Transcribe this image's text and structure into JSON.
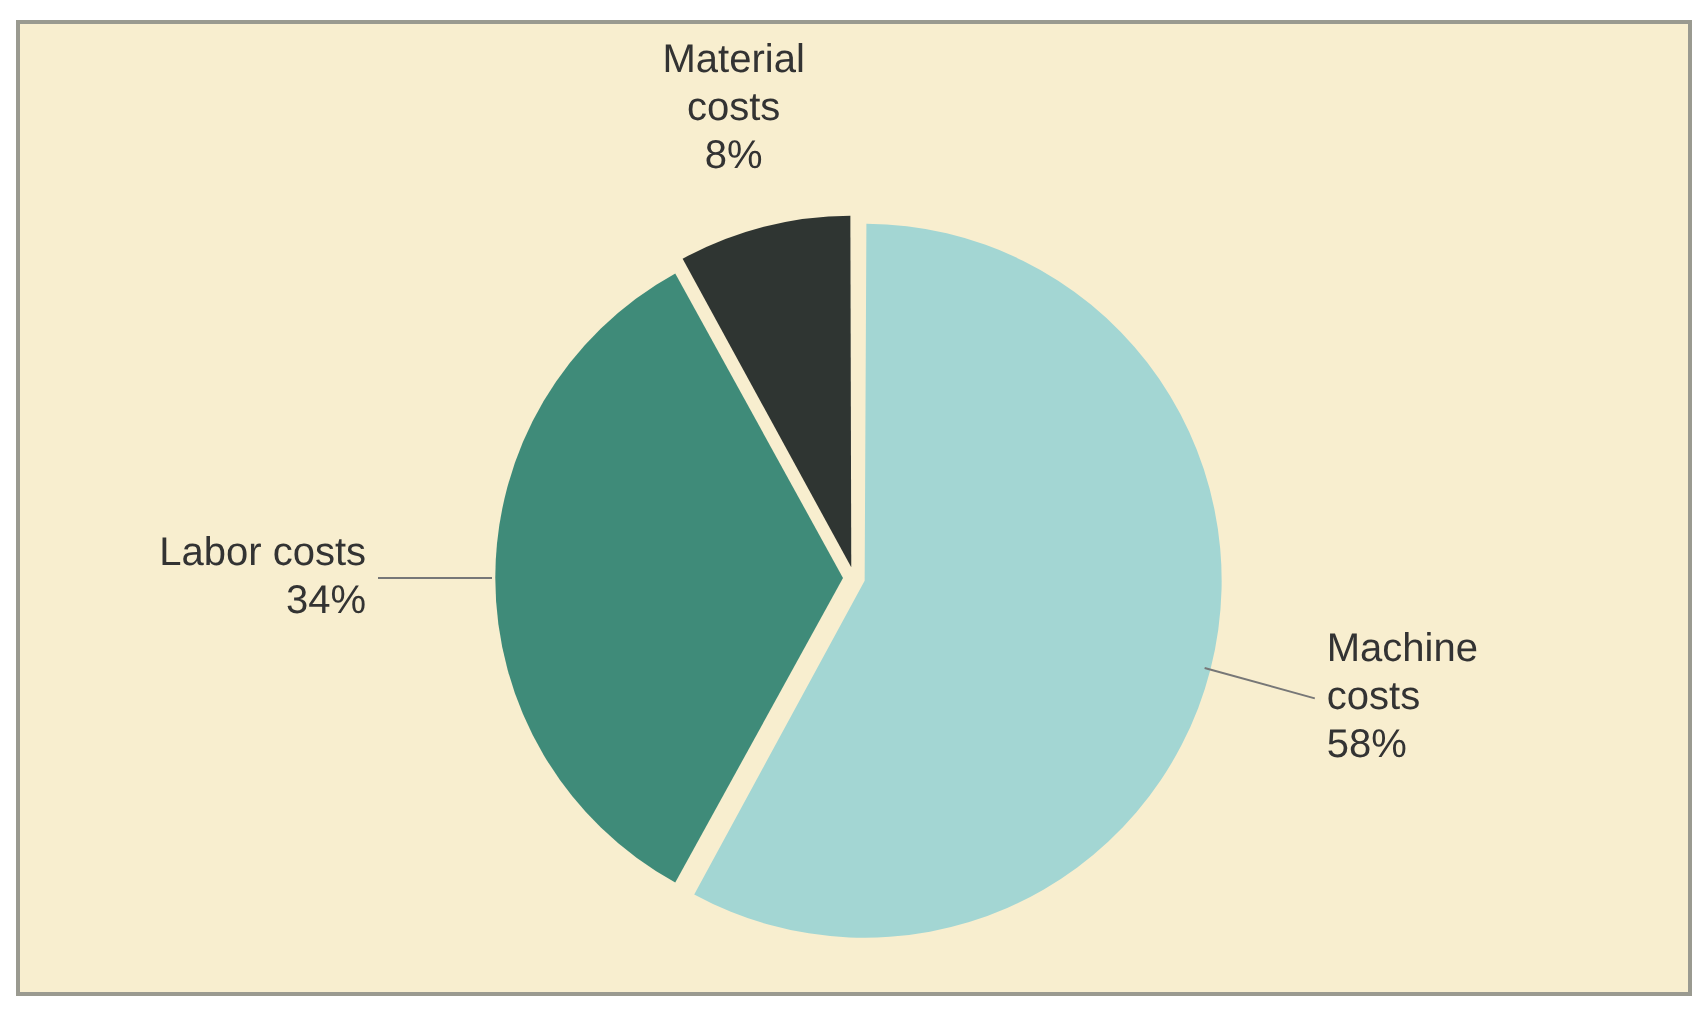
{
  "chart_data": {
    "type": "pie",
    "categories": [
      "Machine costs",
      "Labor costs",
      "Material costs"
    ],
    "values": [
      58,
      34,
      8
    ],
    "colors": [
      "#a3d6d3",
      "#3f8b79",
      "#2f3532"
    ],
    "value_labels": [
      "58%",
      "34%",
      "8%"
    ],
    "legend": false
  }
}
